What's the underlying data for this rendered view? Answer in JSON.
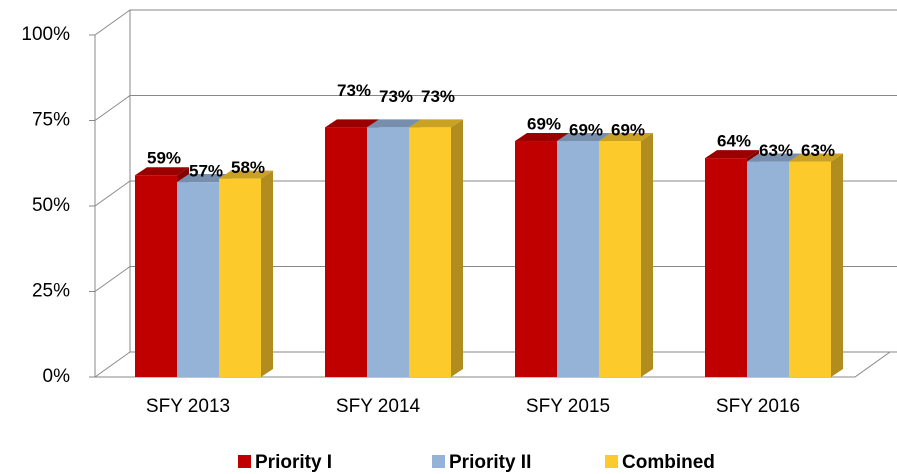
{
  "chart_data": {
    "type": "bar3d",
    "categories": [
      "SFY 2013",
      "SFY 2014",
      "SFY 2015",
      "SFY 2016"
    ],
    "series": [
      {
        "name": "Priority I",
        "color": "#c00000",
        "values": [
          59,
          73,
          69,
          64
        ],
        "value_labels": [
          "59%",
          "73%",
          "69%",
          "64%"
        ]
      },
      {
        "name": "Priority II",
        "color": "#95b3d7",
        "values": [
          57,
          73,
          69,
          63
        ],
        "value_labels": [
          "57%",
          "73%",
          "69%",
          "63%"
        ]
      },
      {
        "name": "Combined",
        "color": "#fdca2c",
        "values": [
          58,
          73,
          69,
          63
        ],
        "value_labels": [
          "58%",
          "73%",
          "69%",
          "63%"
        ]
      }
    ],
    "ylim": [
      0,
      100
    ],
    "yticks": [
      {
        "value": 0,
        "label": "0%"
      },
      {
        "value": 25,
        "label": "25%"
      },
      {
        "value": 50,
        "label": "50%"
      },
      {
        "value": 75,
        "label": "75%"
      },
      {
        "value": 100,
        "label": "100%"
      }
    ],
    "grid": true,
    "legend": "bottom"
  }
}
